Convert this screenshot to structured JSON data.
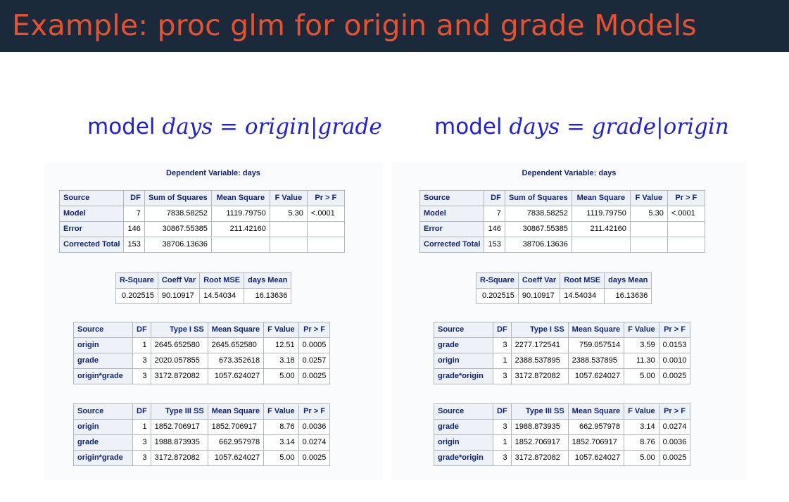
{
  "title": "Example: proc glm for origin and grade Models",
  "left": {
    "model_kw": "model",
    "model_expr": "days = origin|grade",
    "dependent": "Dependent Variable: days",
    "anova": {
      "headers": [
        "Source",
        "DF",
        "Sum of Squares",
        "Mean Square",
        "F Value",
        "Pr > F"
      ],
      "rows": [
        [
          "Model",
          "7",
          "7838.58252",
          "1119.79750",
          "5.30",
          "<.0001"
        ],
        [
          "Error",
          "146",
          "30867.55385",
          "211.42160",
          "",
          ""
        ],
        [
          "Corrected Total",
          "153",
          "38706.13636",
          "",
          "",
          ""
        ]
      ]
    },
    "fit": {
      "headers": [
        "R-Square",
        "Coeff Var",
        "Root MSE",
        "days Mean"
      ],
      "values": [
        "0.202515",
        "90.10917",
        "14.54034",
        "16.13636"
      ]
    },
    "type1": {
      "headers": [
        "Source",
        "DF",
        "Type I SS",
        "Mean Square",
        "F Value",
        "Pr > F"
      ],
      "rows": [
        [
          "origin",
          "1",
          "2645.652580",
          "2645.652580",
          "12.51",
          "0.0005"
        ],
        [
          "grade",
          "3",
          "2020.057855",
          "673.352618",
          "3.18",
          "0.0257"
        ],
        [
          "origin*grade",
          "3",
          "3172.872082",
          "1057.624027",
          "5.00",
          "0.0025"
        ]
      ]
    },
    "type3": {
      "headers": [
        "Source",
        "DF",
        "Type III SS",
        "Mean Square",
        "F Value",
        "Pr > F"
      ],
      "rows": [
        [
          "origin",
          "1",
          "1852.706917",
          "1852.706917",
          "8.76",
          "0.0036"
        ],
        [
          "grade",
          "3",
          "1988.873935",
          "662.957978",
          "3.14",
          "0.0274"
        ],
        [
          "origin*grade",
          "3",
          "3172.872082",
          "1057.624027",
          "5.00",
          "0.0025"
        ]
      ]
    }
  },
  "right": {
    "model_kw": "model",
    "model_expr": "days = grade|origin",
    "dependent": "Dependent Variable: days",
    "anova": {
      "headers": [
        "Source",
        "DF",
        "Sum of Squares",
        "Mean Square",
        "F Value",
        "Pr > F"
      ],
      "rows": [
        [
          "Model",
          "7",
          "7838.58252",
          "1119.79750",
          "5.30",
          "<.0001"
        ],
        [
          "Error",
          "146",
          "30867.55385",
          "211.42160",
          "",
          ""
        ],
        [
          "Corrected Total",
          "153",
          "38706.13636",
          "",
          "",
          ""
        ]
      ]
    },
    "fit": {
      "headers": [
        "R-Square",
        "Coeff Var",
        "Root MSE",
        "days Mean"
      ],
      "values": [
        "0.202515",
        "90.10917",
        "14.54034",
        "16.13636"
      ]
    },
    "type1": {
      "headers": [
        "Source",
        "DF",
        "Type I SS",
        "Mean Square",
        "F Value",
        "Pr > F"
      ],
      "rows": [
        [
          "grade",
          "3",
          "2277.172541",
          "759.057514",
          "3.59",
          "0.0153"
        ],
        [
          "origin",
          "1",
          "2388.537895",
          "2388.537895",
          "11.30",
          "0.0010"
        ],
        [
          "grade*origin",
          "3",
          "3172.872082",
          "1057.624027",
          "5.00",
          "0.0025"
        ]
      ]
    },
    "type3": {
      "headers": [
        "Source",
        "DF",
        "Type III SS",
        "Mean Square",
        "F Value",
        "Pr > F"
      ],
      "rows": [
        [
          "grade",
          "3",
          "1988.873935",
          "662.957978",
          "3.14",
          "0.0274"
        ],
        [
          "origin",
          "1",
          "1852.706917",
          "1852.706917",
          "8.76",
          "0.0036"
        ],
        [
          "grade*origin",
          "3",
          "3172.872082",
          "1057.624027",
          "5.00",
          "0.0025"
        ]
      ]
    }
  }
}
